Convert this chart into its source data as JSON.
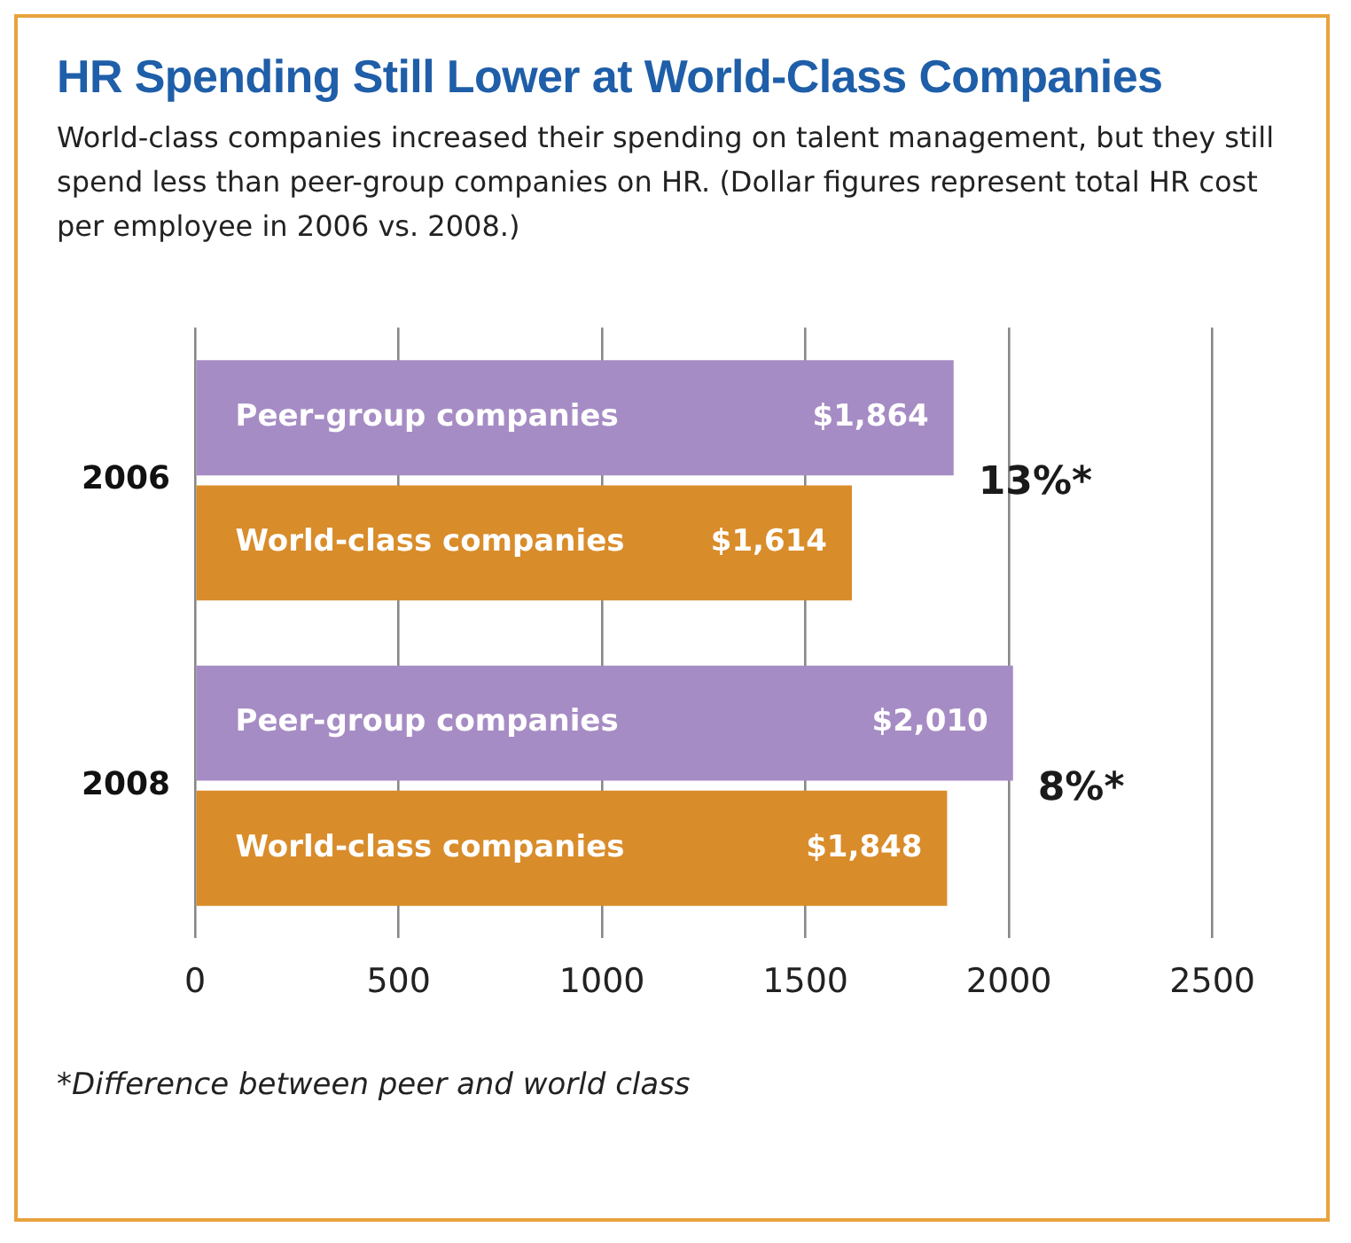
{
  "chart_data": {
    "type": "bar",
    "orientation": "horizontal",
    "title": "HR Spending Still Lower at World-Class Companies",
    "subtitle": "World-class companies increased their spending on talent management, but they still spend less than peer-group companies on HR. (Dollar figures represent total HR cost per employee in 2006 vs. 2008.)",
    "categories": [
      "2006",
      "2008"
    ],
    "series": [
      {
        "name": "Peer-group companies",
        "color": "#a68cc4",
        "values": [
          1864,
          2010
        ],
        "value_labels": [
          "$1,864",
          "$2,010"
        ]
      },
      {
        "name": "World-class companies",
        "color": "#d98c2a",
        "values": [
          1614,
          1848
        ],
        "value_labels": [
          "$1,614",
          "$1,848"
        ]
      }
    ],
    "xlim": [
      0,
      2500
    ],
    "xticks": [
      0,
      500,
      1000,
      1500,
      2000,
      2500
    ],
    "grid": "x",
    "legend": false,
    "annotations": [
      "13%*",
      "8%*",
      "*Difference between peer and world class"
    ]
  }
}
